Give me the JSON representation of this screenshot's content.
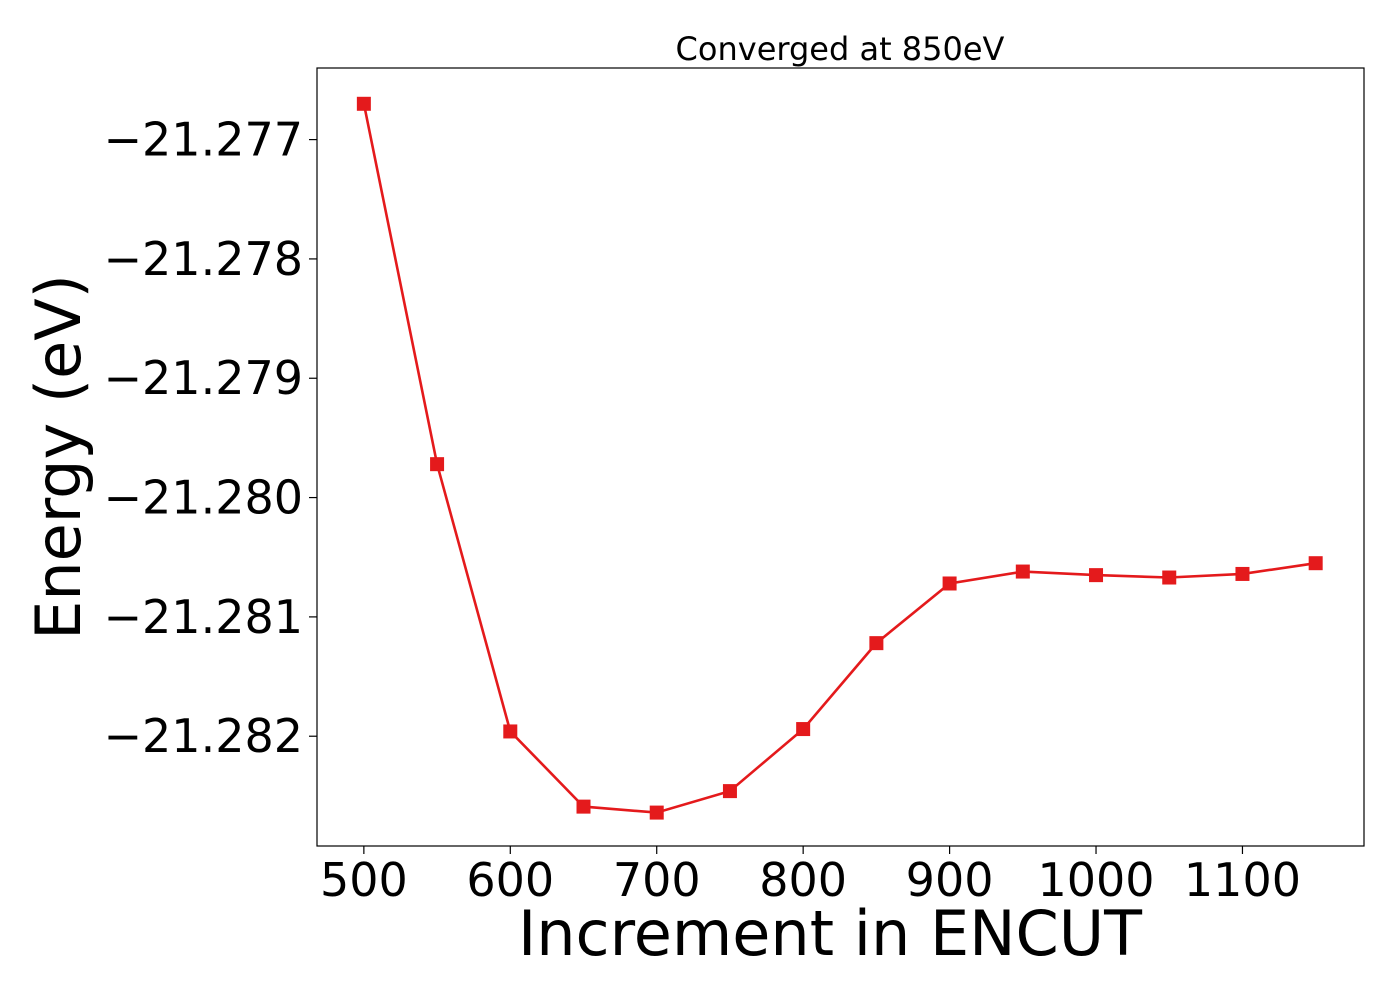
{
  "chart_data": {
    "type": "line",
    "title": "Converged at 850eV",
    "xlabel": "Increment in ENCUT",
    "ylabel": "Energy (eV)",
    "x": [
      500,
      550,
      600,
      650,
      700,
      750,
      800,
      850,
      900,
      950,
      1000,
      1050,
      1100,
      1150
    ],
    "series": [
      {
        "values": [
          -21.2767,
          -21.27972,
          -21.28196,
          -21.28259,
          -21.28264,
          -21.28246,
          -21.28194,
          -21.28122,
          -21.28072,
          -21.28062,
          -21.28065,
          -21.28067,
          -21.28064,
          -21.28055
        ],
        "color": "#e41a1c",
        "marker": "square"
      }
    ],
    "xlim": [
      468,
      1183
    ],
    "ylim": [
      -21.28292,
      -21.2764
    ],
    "xticks": [
      500,
      600,
      700,
      800,
      900,
      1000,
      1100
    ],
    "xtick_labels": [
      "500",
      "600",
      "700",
      "800",
      "900",
      "1000",
      "1100"
    ],
    "yticks": [
      -21.277,
      -21.278,
      -21.279,
      -21.28,
      -21.281,
      -21.282
    ],
    "ytick_labels": [
      "−21.277",
      "−21.278",
      "−21.279",
      "−21.280",
      "−21.281",
      "−21.282"
    ],
    "grid": false,
    "legend": "none"
  }
}
